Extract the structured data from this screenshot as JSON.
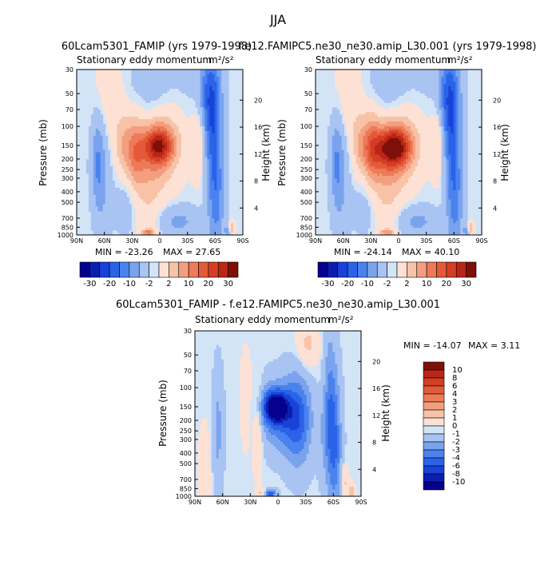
{
  "figure": {
    "season": "JJA",
    "units": "m²/s²"
  },
  "palette": {
    "-7": "#06008f",
    "-6": "#0a1fb0",
    "-5": "#1842d8",
    "-4": "#2a63e8",
    "-3": "#4a82ee",
    "-2": "#7aa3ee",
    "-1": "#a9c4f2",
    "0": "#d4e4f7",
    "1": "#fce1d4",
    "2": "#f7c2a6",
    "3": "#f39f7f",
    "4": "#ed7a58",
    "5": "#e45a39",
    "6": "#d43e24",
    "7": "#b92616",
    "8": "#7f0f09"
  },
  "chart_data": [
    {
      "type": "contour",
      "title_left": "60Lcam5301_FAMIP (yrs 1979-1998)",
      "subtitle": "Stationary eddy momentum",
      "units": "m²/s²",
      "xlabel": "",
      "ylabel": "Pressure (mb)",
      "ylabel_right": "Height (km)",
      "x_ticks": [
        "90N",
        "60N",
        "30N",
        "0",
        "30S",
        "60S",
        "90S"
      ],
      "y_ticks": [
        "30",
        "50",
        "70",
        "100",
        "150",
        "200",
        "250",
        "300",
        "400",
        "500",
        "700",
        "850",
        "1000"
      ],
      "height_ticks": [
        "20",
        "16",
        "12",
        "8",
        "4"
      ],
      "ylim": [
        1000,
        30
      ],
      "xlim": [
        90,
        -90
      ],
      "min_label": "MIN = -23.26",
      "max_label": "MAX =  27.65",
      "min": -23.26,
      "max": 27.65,
      "colorbar_levels": [
        "-30",
        "-20",
        "-10",
        "-2",
        "2",
        "10",
        "20",
        "30"
      ],
      "features": [
        {
          "lat": 1,
          "p": 150,
          "amp": 5.8,
          "dlat": 11,
          "dlogp": 0.12
        },
        {
          "lat": 6,
          "p": 200,
          "amp": 2.0,
          "dlat": 16,
          "dlogp": 0.25
        },
        {
          "lat": 27,
          "p": 175,
          "amp": 3.1,
          "dlat": 7,
          "dlogp": 0.22
        },
        {
          "lat": 40,
          "p": 150,
          "amp": 1.6,
          "dlat": 6,
          "dlogp": 0.2
        },
        {
          "lat": 55,
          "p": 60,
          "amp": 0.9,
          "dlat": 12,
          "dlogp": 0.3
        },
        {
          "lat": -12,
          "p": 80,
          "amp": 1.0,
          "dlat": 14,
          "dlogp": 0.3
        },
        {
          "lat": -43,
          "p": 130,
          "amp": 1.4,
          "dlat": 6,
          "dlogp": 0.25
        },
        {
          "lat": 15,
          "p": 500,
          "amp": 0.8,
          "dlat": 10,
          "dlogp": 0.4
        },
        {
          "lat": -5,
          "p": 45,
          "amp": -1.0,
          "dlat": 25,
          "dlogp": 0.25
        },
        {
          "lat": -55,
          "p": 55,
          "amp": -3.8,
          "dlat": 8,
          "dlogp": 0.32
        },
        {
          "lat": -58,
          "p": 200,
          "amp": -2.0,
          "dlat": 6,
          "dlogp": 0.4
        },
        {
          "lat": -62,
          "p": 500,
          "amp": -1.8,
          "dlat": 6,
          "dlogp": 0.4
        },
        {
          "lat": 68,
          "p": 200,
          "amp": -1.8,
          "dlat": 5,
          "dlogp": 0.3
        },
        {
          "lat": 62,
          "p": 300,
          "amp": -1.2,
          "dlat": 6,
          "dlogp": 0.4
        },
        {
          "lat": -20,
          "p": 750,
          "amp": -1.5,
          "dlat": 15,
          "dlogp": 0.1
        },
        {
          "lat": 35,
          "p": 450,
          "amp": -0.8,
          "dlat": 10,
          "dlogp": 0.25
        },
        {
          "lat": 12,
          "p": 950,
          "amp": 3.4,
          "dlat": 5,
          "dlogp": 0.02
        },
        {
          "lat": -78,
          "p": 870,
          "amp": 2.5,
          "dlat": 2.5,
          "dlogp": 0.04
        },
        {
          "lat": -74,
          "p": 920,
          "amp": -1.8,
          "dlat": 2.5,
          "dlogp": 0.04
        }
      ]
    },
    {
      "type": "contour",
      "title_left": "f.e12.FAMIPC5.ne30_ne30.amip_L30.001 (yrs 1979-1998)",
      "subtitle": "Stationary eddy momentum",
      "units": "m²/s²",
      "xlabel": "",
      "ylabel": "Pressure (mb)",
      "ylabel_right": "Height (km)",
      "x_ticks": [
        "90N",
        "60N",
        "30N",
        "0",
        "30S",
        "60S",
        "90S"
      ],
      "y_ticks": [
        "30",
        "50",
        "70",
        "100",
        "150",
        "200",
        "250",
        "300",
        "400",
        "500",
        "700",
        "850",
        "1000"
      ],
      "height_ticks": [
        "20",
        "16",
        "12",
        "8",
        "4"
      ],
      "ylim": [
        1000,
        30
      ],
      "xlim": [
        90,
        -90
      ],
      "min_label": "MIN = -24.14",
      "max_label": "MAX =  40.10",
      "min": -24.14,
      "max": 40.1,
      "colorbar_levels": [
        "-30",
        "-20",
        "-10",
        "-2",
        "2",
        "10",
        "20",
        "30"
      ],
      "features": [
        {
          "lat": 5,
          "p": 155,
          "amp": 7.0,
          "dlat": 13,
          "dlogp": 0.13
        },
        {
          "lat": 8,
          "p": 210,
          "amp": 2.0,
          "dlat": 16,
          "dlogp": 0.25
        },
        {
          "lat": 29,
          "p": 165,
          "amp": 3.6,
          "dlat": 7,
          "dlogp": 0.22
        },
        {
          "lat": 42,
          "p": 150,
          "amp": 1.6,
          "dlat": 6,
          "dlogp": 0.2
        },
        {
          "lat": 55,
          "p": 60,
          "amp": 0.9,
          "dlat": 12,
          "dlogp": 0.3
        },
        {
          "lat": -12,
          "p": 80,
          "amp": 1.0,
          "dlat": 14,
          "dlogp": 0.3
        },
        {
          "lat": -43,
          "p": 130,
          "amp": 1.4,
          "dlat": 6,
          "dlogp": 0.25
        },
        {
          "lat": 15,
          "p": 500,
          "amp": 0.8,
          "dlat": 10,
          "dlogp": 0.4
        },
        {
          "lat": -5,
          "p": 45,
          "amp": -1.0,
          "dlat": 25,
          "dlogp": 0.25
        },
        {
          "lat": -55,
          "p": 55,
          "amp": -3.8,
          "dlat": 8,
          "dlogp": 0.32
        },
        {
          "lat": -58,
          "p": 200,
          "amp": -2.0,
          "dlat": 6,
          "dlogp": 0.4
        },
        {
          "lat": -62,
          "p": 500,
          "amp": -1.8,
          "dlat": 6,
          "dlogp": 0.4
        },
        {
          "lat": 68,
          "p": 200,
          "amp": -1.8,
          "dlat": 5,
          "dlogp": 0.3
        },
        {
          "lat": 62,
          "p": 300,
          "amp": -1.2,
          "dlat": 6,
          "dlogp": 0.4
        },
        {
          "lat": -20,
          "p": 750,
          "amp": -1.5,
          "dlat": 15,
          "dlogp": 0.1
        },
        {
          "lat": 35,
          "p": 450,
          "amp": -0.8,
          "dlat": 10,
          "dlogp": 0.25
        },
        {
          "lat": 12,
          "p": 950,
          "amp": 3.0,
          "dlat": 5,
          "dlogp": 0.02
        },
        {
          "lat": -78,
          "p": 870,
          "amp": 2.5,
          "dlat": 2.5,
          "dlogp": 0.04
        },
        {
          "lat": -74,
          "p": 920,
          "amp": -1.8,
          "dlat": 2.5,
          "dlogp": 0.04
        }
      ]
    },
    {
      "type": "contour",
      "title_left": "60Lcam5301_FAMIP - f.e12.FAMIPC5.ne30_ne30.amip_L30.001",
      "subtitle": "Stationary eddy momentum",
      "units": "m²/s²",
      "xlabel": "",
      "ylabel": "Pressure (mb)",
      "ylabel_right": "Height (km)",
      "x_ticks": [
        "90N",
        "60N",
        "30N",
        "0",
        "30S",
        "60S",
        "90S"
      ],
      "y_ticks": [
        "30",
        "50",
        "70",
        "100",
        "150",
        "200",
        "250",
        "300",
        "400",
        "500",
        "700",
        "850",
        "1000"
      ],
      "height_ticks": [
        "20",
        "16",
        "12",
        "8",
        "4"
      ],
      "ylim": [
        1000,
        30
      ],
      "xlim": [
        90,
        -90
      ],
      "min_label": "MIN = -14.07",
      "max_label": "MAX =   3.11",
      "min": -14.07,
      "max": 3.11,
      "colorbar_levels": [
        "10",
        "8",
        "6",
        "4",
        "3",
        "2",
        "1",
        "0",
        "-1",
        "-2",
        "-3",
        "-4",
        "-6",
        "-8",
        "-10"
      ],
      "features": [
        {
          "lat": 3,
          "p": 150,
          "amp": -6.5,
          "dlat": 9,
          "dlogp": 0.1
        },
        {
          "lat": -3,
          "p": 180,
          "amp": -3.0,
          "dlat": 16,
          "dlogp": 0.22
        },
        {
          "lat": -22,
          "p": 200,
          "amp": -3.0,
          "dlat": 10,
          "dlogp": 0.3
        },
        {
          "lat": -55,
          "p": 150,
          "amp": -3.2,
          "dlat": 6,
          "dlogp": 0.45
        },
        {
          "lat": -62,
          "p": 400,
          "amp": -2.5,
          "dlat": 5,
          "dlogp": 0.4
        },
        {
          "lat": 65,
          "p": 250,
          "amp": -1.5,
          "dlat": 4,
          "dlogp": 0.4
        },
        {
          "lat": 22,
          "p": 230,
          "amp": 1.5,
          "dlat": 4,
          "dlogp": 0.28
        },
        {
          "lat": 35,
          "p": 130,
          "amp": 1.0,
          "dlat": 4,
          "dlogp": 0.3
        },
        {
          "lat": -32,
          "p": 40,
          "amp": 1.5,
          "dlat": 8,
          "dlogp": 0.15
        },
        {
          "lat": -50,
          "p": 90,
          "amp": 1.0,
          "dlat": 5,
          "dlogp": 0.25
        },
        {
          "lat": 8,
          "p": 950,
          "amp": -4.0,
          "dlat": 4,
          "dlogp": 0.03
        },
        {
          "lat": 18,
          "p": 930,
          "amp": 1.5,
          "dlat": 3,
          "dlogp": 0.03
        },
        {
          "lat": -72,
          "p": 750,
          "amp": 1.5,
          "dlat": 3,
          "dlogp": 0.12
        },
        {
          "lat": -80,
          "p": 900,
          "amp": 2.0,
          "dlat": 2,
          "dlogp": 0.05
        },
        {
          "lat": 80,
          "p": 600,
          "amp": 0.8,
          "dlat": 5,
          "dlogp": 0.3
        }
      ]
    }
  ]
}
